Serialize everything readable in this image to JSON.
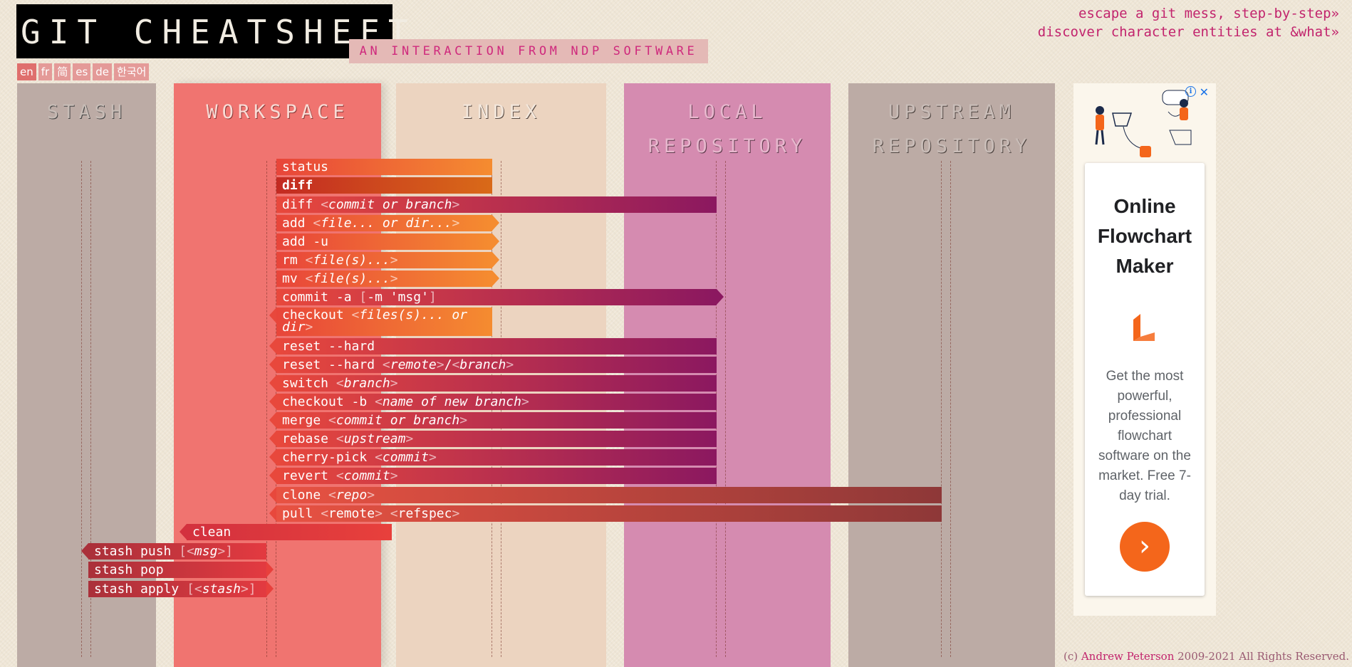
{
  "header": {
    "title": "GIT CHEATSHEET",
    "subtitle": "AN INTERACTION FROM NDP SOFTWARE",
    "languages": [
      "en",
      "fr",
      "简",
      "es",
      "de",
      "한국어"
    ],
    "links": [
      "escape a git mess, step-by-step»",
      "discover character entities at &what»"
    ]
  },
  "columns": [
    "STASH",
    "WORKSPACE",
    "INDEX",
    "LOCAL REPOSITORY",
    "UPSTREAM REPOSITORY"
  ],
  "commands": [
    {
      "cmd": "status",
      "args": ""
    },
    {
      "cmd": "diff",
      "args": ""
    },
    {
      "cmd": "diff",
      "args": "commit or branch"
    },
    {
      "cmd": "add",
      "args": "file... or dir..."
    },
    {
      "cmd": "add -u",
      "args": ""
    },
    {
      "cmd": "rm",
      "args": "file(s)..."
    },
    {
      "cmd": "mv",
      "args": "file(s)..."
    },
    {
      "cmd": "commit -a",
      "opt": "-m 'msg'"
    },
    {
      "cmd": "checkout",
      "args": "files(s)... or dir"
    },
    {
      "cmd": "reset --hard",
      "args": ""
    },
    {
      "cmd": "reset --hard",
      "args1": "remote",
      "sep": "/",
      "args2": "branch"
    },
    {
      "cmd": "switch",
      "args": "branch"
    },
    {
      "cmd": "checkout -b",
      "args": "name of new branch"
    },
    {
      "cmd": "merge",
      "args": "commit or branch"
    },
    {
      "cmd": "rebase",
      "args": "upstream"
    },
    {
      "cmd": "cherry-pick",
      "args": "commit"
    },
    {
      "cmd": "revert",
      "args": "commit"
    },
    {
      "cmd": "clone",
      "args": "repo"
    },
    {
      "cmd": "pull",
      "args1": "remote",
      "args2": "refspec"
    },
    {
      "cmd": "clean",
      "args": ""
    },
    {
      "cmd": "stash push",
      "args": "msg"
    },
    {
      "cmd": "stash pop",
      "args": ""
    },
    {
      "cmd": "stash apply",
      "args": "stash"
    }
  ],
  "ad": {
    "headline": "Online Flowchart Maker",
    "body": "Get the most powerful, professional flowchart software on the market. Free 7-day trial.",
    "button_icon": "chevron-right-icon",
    "accent": "#f4661b"
  },
  "footer": {
    "prefix": "(c) ",
    "author": "Andrew Peterson",
    "suffix": " 2009-2021 All Rights Reserved."
  }
}
